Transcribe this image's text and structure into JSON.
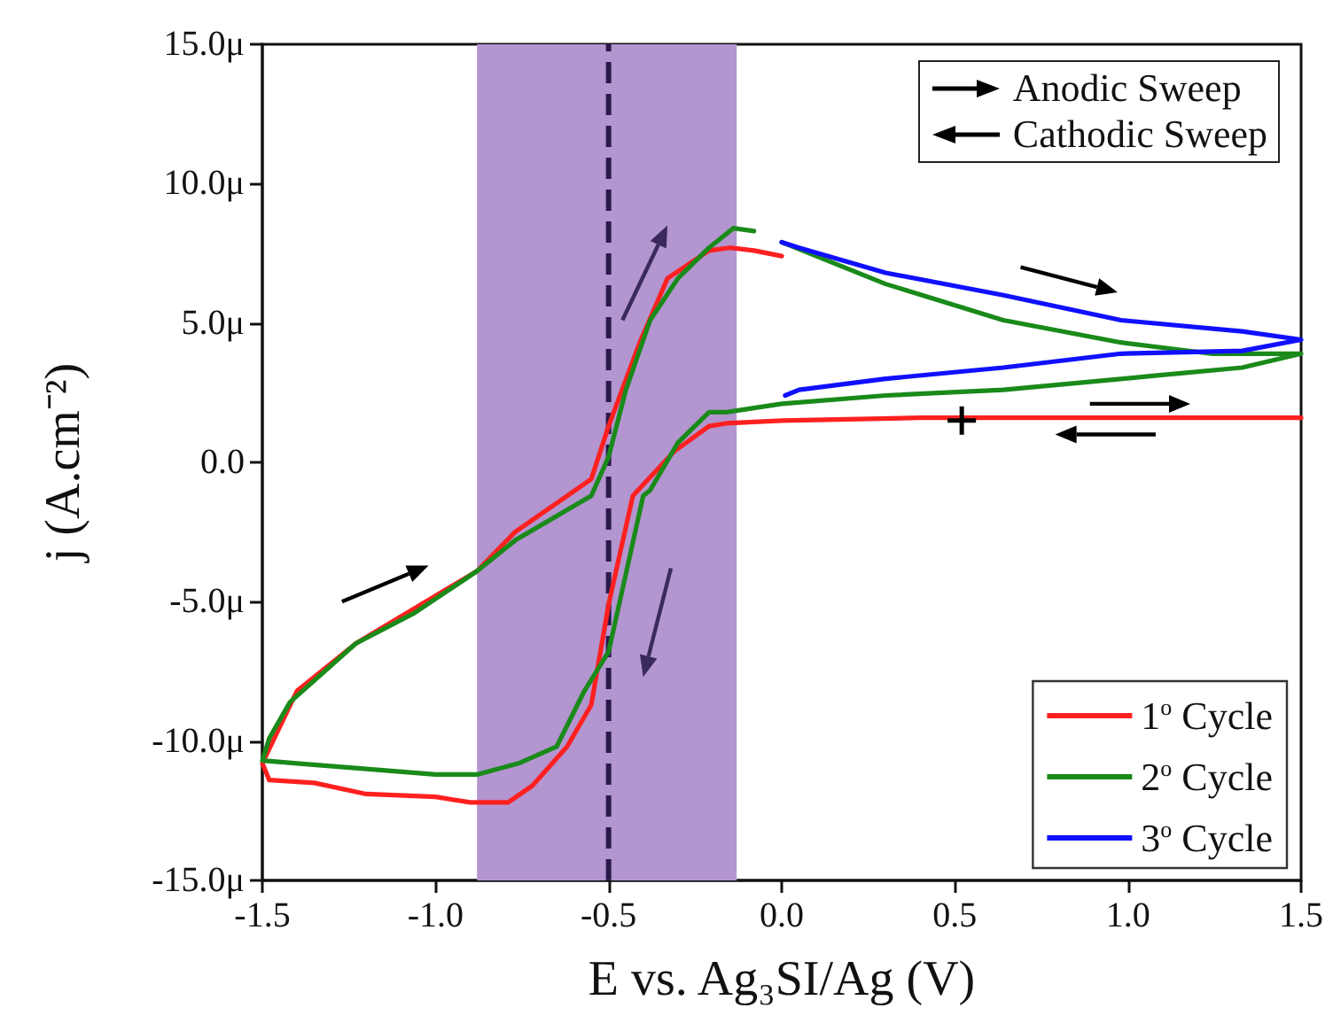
{
  "chart_data": {
    "type": "line",
    "xlabel": "E vs. Ag₃SI/Ag (V)",
    "ylabel": "j (A.cm⁻²)",
    "xlim": [
      -1.5,
      1.5
    ],
    "xticks": [
      {
        "value": -1.5,
        "label": "-1.5"
      },
      {
        "value": -1.0,
        "label": "-1.0"
      },
      {
        "value": -0.5,
        "label": "-0.5"
      },
      {
        "value": 0,
        "label": "0.0"
      },
      {
        "value": 0.5,
        "label": "0.5"
      },
      {
        "value": 1.0,
        "label": "1.0"
      },
      {
        "value": 1.5,
        "label": "1.5"
      }
    ],
    "ylim": [
      -15,
      15
    ],
    "yticks": [
      {
        "value": -15,
        "label": "-15.0μ"
      },
      {
        "value": -10,
        "label": "-10.0μ"
      },
      {
        "value": -5,
        "label": "-5.0μ"
      },
      {
        "value": 0,
        "label": "0.0"
      },
      {
        "value": 5,
        "label": "5.0μ"
      },
      {
        "value": 10,
        "label": "10.0μ"
      },
      {
        "value": 15,
        "label": "15.0μ"
      }
    ],
    "legend": "bottom right",
    "annotations": [
      "Anodic Sweep",
      "Cathodic Sweep"
    ],
    "bands": [
      {
        "axis": "x",
        "from": -0.88,
        "to": -0.13,
        "color": "#b395d0"
      }
    ],
    "ref_lines": [
      {
        "axis": "x",
        "value": -0.5,
        "color": "#2a1a4a",
        "line_style": "dashed"
      }
    ],
    "series": [
      {
        "name": "1$^{o}$ Cycle",
        "color": "#ff2020",
        "x": [
          0.52,
          0.8,
          1.1,
          1.5,
          1.2,
          0.8,
          0.4,
          0.0,
          -0.16,
          -0.21,
          -0.31,
          -0.43,
          -0.5,
          -0.55,
          -0.62,
          -0.72,
          -0.79,
          -0.9,
          -1.0,
          -1.2,
          -1.35,
          -1.48,
          -1.5,
          -1.45,
          -1.4,
          -1.23,
          -0.88,
          -0.77,
          -0.55,
          -0.5,
          -0.41,
          -0.33,
          -0.21,
          -0.15,
          -0.08,
          0.0
        ],
        "values": [
          1.6,
          1.6,
          1.6,
          1.6,
          1.6,
          1.6,
          1.6,
          1.5,
          1.4,
          1.3,
          0.4,
          -1.2,
          -5.1,
          -8.7,
          -10.2,
          -11.6,
          -12.2,
          -12.2,
          -12.0,
          -11.9,
          -11.5,
          -11.4,
          -10.8,
          -9.5,
          -8.2,
          -6.5,
          -3.9,
          -2.5,
          -0.6,
          1.3,
          4.3,
          6.6,
          7.6,
          7.7,
          7.6,
          7.4
        ]
      },
      {
        "name": "2$^{o}$ Cycle",
        "color": "#1a8a1a",
        "x": [
          0.0,
          0.3,
          0.64,
          0.98,
          1.24,
          1.5,
          1.33,
          1.07,
          0.64,
          0.3,
          0.0,
          -0.16,
          -0.21,
          -0.3,
          -0.38,
          -0.4,
          -0.5,
          -0.57,
          -0.65,
          -0.76,
          -0.88,
          -1.0,
          -1.2,
          -1.4,
          -1.5,
          -1.48,
          -1.42,
          -1.23,
          -1.06,
          -0.88,
          -0.77,
          -0.55,
          -0.5,
          -0.45,
          -0.38,
          -0.3,
          -0.21,
          -0.14,
          -0.08
        ],
        "values": [
          7.9,
          6.4,
          5.1,
          4.3,
          3.9,
          3.9,
          3.4,
          3.1,
          2.6,
          2.4,
          2.1,
          1.8,
          1.8,
          0.7,
          -1.0,
          -1.2,
          -6.8,
          -8.2,
          -10.2,
          -10.8,
          -11.2,
          -11.2,
          -11.0,
          -10.8,
          -10.7,
          -9.9,
          -8.6,
          -6.5,
          -5.4,
          -3.9,
          -2.8,
          -1.2,
          0.2,
          2.6,
          5.1,
          6.6,
          7.7,
          8.4,
          8.3
        ]
      },
      {
        "name": "3$^{o}$ Cycle",
        "color": "#1010ff",
        "x": [
          0.01,
          0.05,
          0.3,
          0.64,
          0.98,
          1.33,
          1.5,
          1.33,
          0.98,
          0.64,
          0.3,
          0.05,
          0.0
        ],
        "values": [
          2.4,
          2.6,
          3.0,
          3.4,
          3.9,
          4.0,
          4.4,
          4.7,
          5.1,
          6.0,
          6.8,
          7.7,
          7.9
        ]
      }
    ]
  }
}
